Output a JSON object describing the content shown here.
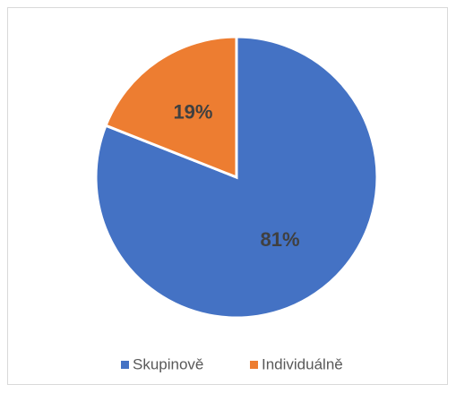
{
  "chart_data": {
    "type": "pie",
    "categories": [
      "Skupinově",
      "Individuálně"
    ],
    "values": [
      81,
      19
    ],
    "value_labels": [
      "81%",
      "19%"
    ],
    "colors": [
      "#4472c4",
      "#ed7d31"
    ],
    "legend": "bottom"
  }
}
